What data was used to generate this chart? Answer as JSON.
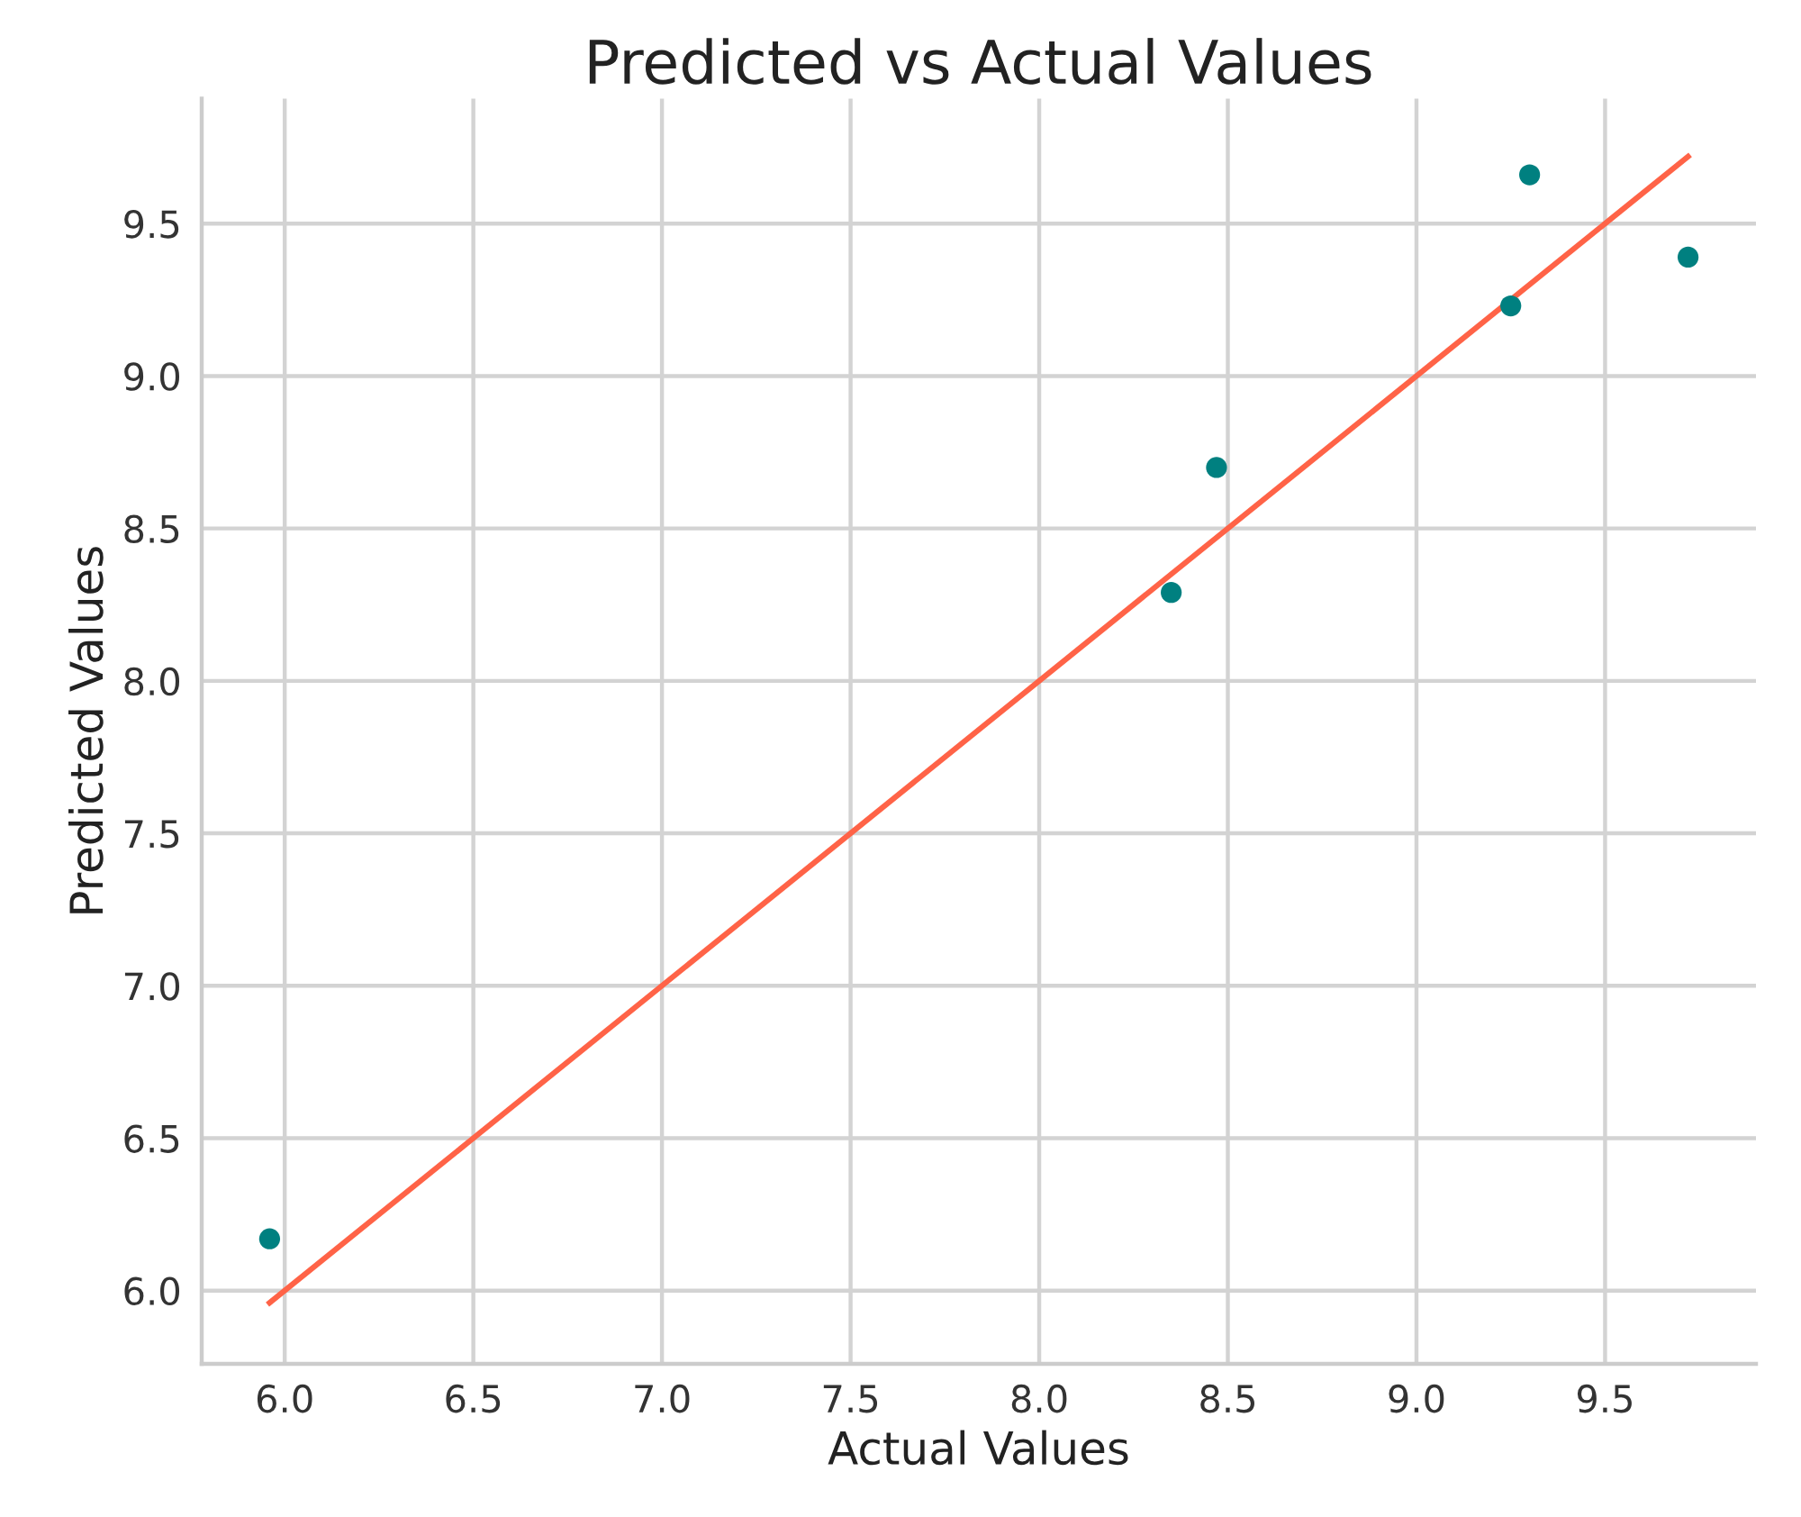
{
  "chart_data": {
    "type": "scatter",
    "title": "Predicted vs Actual Values",
    "xlabel": "Actual Values",
    "ylabel": "Predicted Values",
    "series": [
      {
        "color": "#008080",
        "marker": "circle",
        "x": [
          5.96,
          8.35,
          8.47,
          9.25,
          9.3,
          9.72
        ],
        "values": [
          6.17,
          8.29,
          8.7,
          9.23,
          9.66,
          9.39
        ]
      },
      {
        "type": "line",
        "color": "#ff6347",
        "line_style": "solid",
        "marker": "none",
        "x": [
          5.96,
          9.72
        ],
        "values": [
          5.96,
          9.72
        ]
      }
    ],
    "xlim": [
      5.78,
      9.9
    ],
    "ylim": [
      5.76,
      9.91
    ],
    "xticks": [
      {
        "value": 6,
        "label": "6.0"
      },
      {
        "value": 6.5,
        "label": "6.5"
      },
      {
        "value": 7,
        "label": "7.0"
      },
      {
        "value": 7.5,
        "label": "7.5"
      },
      {
        "value": 8,
        "label": "8.0"
      },
      {
        "value": 8.5,
        "label": "8.5"
      },
      {
        "value": 9,
        "label": "9.0"
      },
      {
        "value": 9.5,
        "label": "9.5"
      }
    ],
    "yticks": [
      {
        "value": 6,
        "label": "6.0"
      },
      {
        "value": 6.5,
        "label": "6.5"
      },
      {
        "value": 7,
        "label": "7.0"
      },
      {
        "value": 7.5,
        "label": "7.5"
      },
      {
        "value": 8,
        "label": "8.0"
      },
      {
        "value": 8.5,
        "label": "8.5"
      },
      {
        "value": 9,
        "label": "9.0"
      },
      {
        "value": 9.5,
        "label": "9.5"
      }
    ],
    "grid": true
  }
}
